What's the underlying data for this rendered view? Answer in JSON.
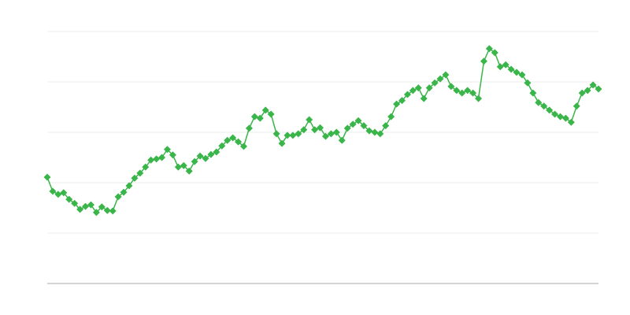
{
  "chart_data": {
    "type": "line",
    "title": "",
    "xlabel": "",
    "ylabel": "",
    "ylim": [
      0,
      5
    ],
    "grid": true,
    "legend": "none",
    "marker": "diamond",
    "color": "#3ab54a",
    "series": [
      {
        "values": [
          2.11,
          1.83,
          1.77,
          1.8,
          1.67,
          1.59,
          1.47,
          1.53,
          1.56,
          1.41,
          1.52,
          1.45,
          1.44,
          1.72,
          1.81,
          1.94,
          2.09,
          2.19,
          2.31,
          2.45,
          2.47,
          2.5,
          2.66,
          2.55,
          2.31,
          2.34,
          2.23,
          2.42,
          2.53,
          2.48,
          2.56,
          2.61,
          2.73,
          2.84,
          2.89,
          2.81,
          2.72,
          3.08,
          3.31,
          3.28,
          3.44,
          3.36,
          2.97,
          2.78,
          2.94,
          2.94,
          2.97,
          3.05,
          3.25,
          3.05,
          3.09,
          2.92,
          2.97,
          3.0,
          2.84,
          3.08,
          3.16,
          3.23,
          3.13,
          3.03,
          3.0,
          2.97,
          3.13,
          3.31,
          3.56,
          3.63,
          3.75,
          3.83,
          3.88,
          3.67,
          3.88,
          3.98,
          4.06,
          4.14,
          3.91,
          3.83,
          3.78,
          3.83,
          3.78,
          3.67,
          4.41,
          4.66,
          4.58,
          4.3,
          4.34,
          4.25,
          4.19,
          4.14,
          3.98,
          3.78,
          3.59,
          3.52,
          3.44,
          3.36,
          3.31,
          3.28,
          3.2,
          3.52,
          3.78,
          3.83,
          3.94,
          3.86
        ]
      }
    ]
  }
}
